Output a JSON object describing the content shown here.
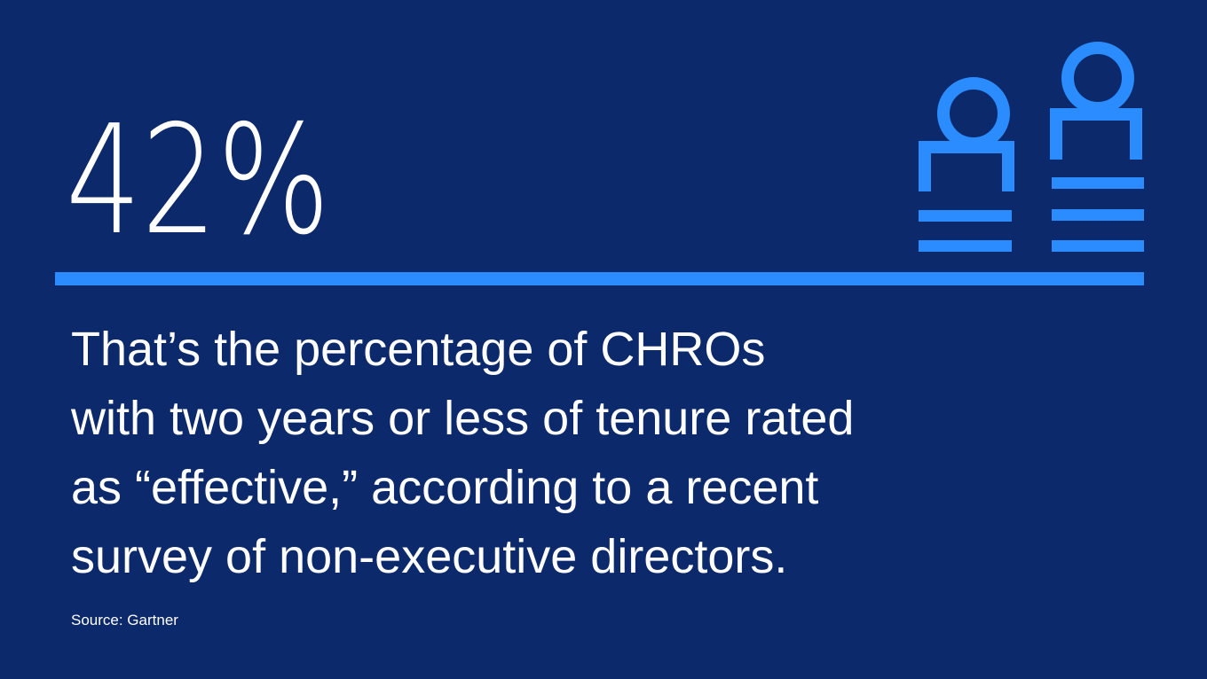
{
  "stat": "42%",
  "description": {
    "lines": [
      "That’s the percentage of CHROs",
      "with two years or less of tenure rated",
      "as “effective,” according to a recent",
      "survey of non-executive directors."
    ]
  },
  "source": "Source: Gartner"
}
